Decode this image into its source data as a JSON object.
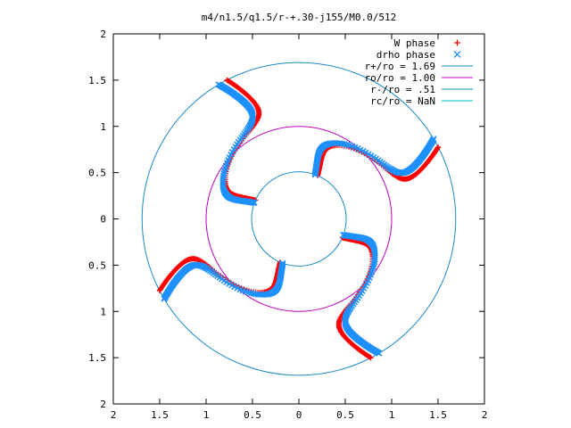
{
  "chart_data": {
    "type": "scatter",
    "title": "m4/n1.5/q1.5/r-+.30-j155/M0.0/512",
    "xlabel": "",
    "ylabel": "",
    "xlim": [
      -2,
      2
    ],
    "ylim": [
      -2,
      2
    ],
    "x_tick_labels": [
      "2",
      "1.5",
      "1",
      "0.5",
      "0",
      "0.5",
      "1",
      "1.5",
      "2"
    ],
    "y_tick_labels": [
      "2",
      "1.5",
      "1",
      "0.5",
      "0",
      "0.5",
      "1",
      "1.5",
      "2"
    ],
    "grid": false,
    "legend_position": "top-right",
    "colors": {
      "w_phase": "#ff0000",
      "drho_phase": "#1e90ff",
      "r_plus": "#1a8ac8",
      "ro": "#c000c0",
      "r_minus": "#1a8ac8",
      "rc": "#00c0c0"
    },
    "series": [
      {
        "name": "W phase",
        "marker": "plus",
        "description": "four spiral arms (m=4) crossing the corotation circle",
        "arm_angles_deg": [
          0,
          90,
          180,
          270
        ],
        "inner_radius": 0.51,
        "outer_radius": 1.69
      },
      {
        "name": "drho phase",
        "marker": "cross",
        "description": "four spiral arms (m=4), slightly trailing W phase",
        "arm_angles_deg": [
          0,
          90,
          180,
          270
        ],
        "inner_radius": 0.51,
        "outer_radius": 1.69
      }
    ],
    "circles": [
      {
        "name": "r+/ro = 1.69",
        "radius": 1.69
      },
      {
        "name": "ro/ro = 1.00",
        "radius": 1.0
      },
      {
        "name": "r-/ro = .51",
        "radius": 0.51
      },
      {
        "name": "rc/ro = NaN",
        "radius": null
      }
    ]
  }
}
